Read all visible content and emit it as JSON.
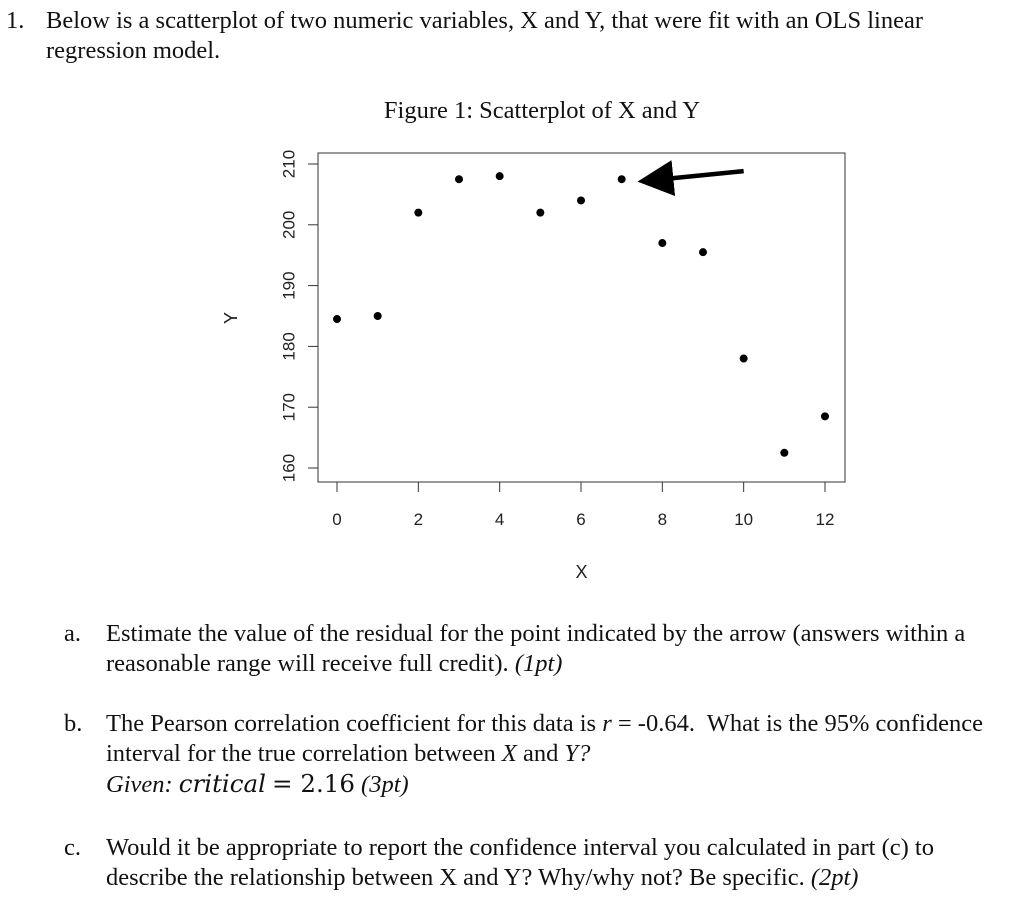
{
  "question": {
    "number": "1.",
    "text": "Below is a scatterplot of two numeric variables, X and Y, that were fit with an OLS linear regression model."
  },
  "chart_data": {
    "type": "scatter",
    "title": "Figure 1: Scatterplot of X and Y",
    "xlabel": "X",
    "ylabel": "Y",
    "xlim": [
      -0.5,
      12.5
    ],
    "ylim": [
      158,
      212
    ],
    "x_ticks": [
      0,
      2,
      4,
      6,
      8,
      10,
      12
    ],
    "y_ticks": [
      160,
      170,
      180,
      190,
      200,
      210
    ],
    "points": [
      {
        "x": 0,
        "y": 184.5
      },
      {
        "x": 1,
        "y": 185
      },
      {
        "x": 2,
        "y": 202
      },
      {
        "x": 3,
        "y": 207.5
      },
      {
        "x": 4,
        "y": 208
      },
      {
        "x": 5,
        "y": 202
      },
      {
        "x": 6,
        "y": 204
      },
      {
        "x": 7,
        "y": 207.5
      },
      {
        "x": 8,
        "y": 197
      },
      {
        "x": 9,
        "y": 195.5
      },
      {
        "x": 10,
        "y": 178
      },
      {
        "x": 11,
        "y": 162.5
      },
      {
        "x": 12,
        "y": 168.5
      }
    ],
    "arrow": {
      "from": {
        "x": 10,
        "y": 208.5
      },
      "to": {
        "x": 7.5,
        "y": 207.5
      }
    },
    "grid": false,
    "colors": {
      "points": "#000000",
      "axes": "#333333"
    }
  },
  "parts": {
    "a": {
      "letter": "a.",
      "text": "Estimate the value of the residual for the point indicated by the arrow (answers within a reasonable range will receive full credit).",
      "points": "(1pt)"
    },
    "b": {
      "letter": "b.",
      "text_1": "The Pearson correlation coefficient for this data is",
      "r_symbol": "r",
      "r_value": "= -0.64.",
      "text_2": "What is the 95% confidence interval for the true correlation between",
      "x_var": "X",
      "and": "and",
      "y_var": "Y?",
      "given_label": "Given:",
      "critical_label": "critical",
      "critical_value": "= 2.16",
      "points": "(3pt)"
    },
    "c": {
      "letter": "c.",
      "text": "Would it be appropriate to report the confidence interval you calculated in part (c) to describe the relationship between X and Y? Why/why not? Be specific.",
      "points": "(2pt)"
    }
  }
}
